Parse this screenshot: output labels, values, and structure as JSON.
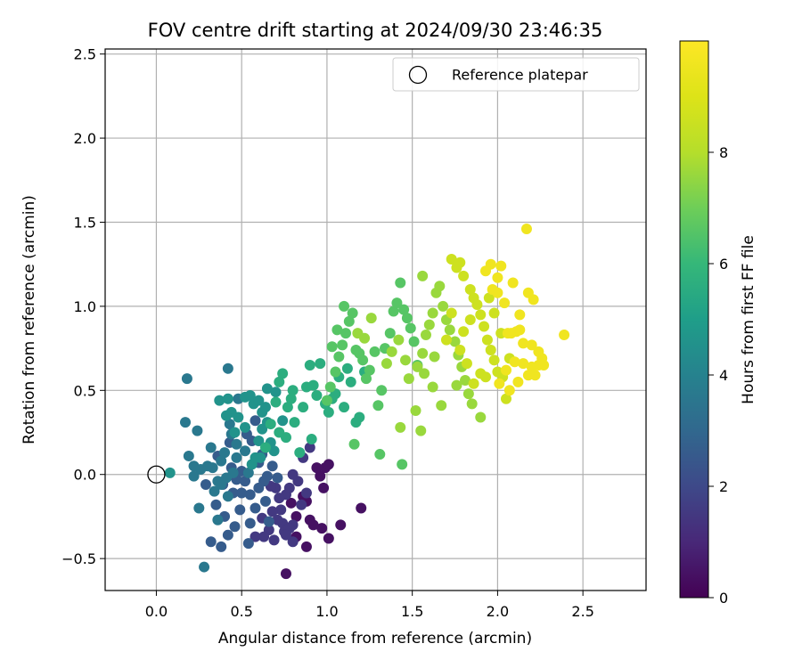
{
  "chart_data": {
    "type": "scatter",
    "title": "FOV centre drift starting at 2024/09/30 23:46:35",
    "xlabel": "Angular distance from reference (arcmin)",
    "ylabel": "Rotation from reference (arcmin)",
    "xlim": [
      -0.3,
      2.87
    ],
    "ylim": [
      -0.69,
      2.53
    ],
    "xticks": [
      0.0,
      0.5,
      1.0,
      1.5,
      2.0,
      2.5
    ],
    "xtick_labels": [
      "0.0",
      "0.5",
      "1.0",
      "1.5",
      "2.0",
      "2.5"
    ],
    "yticks": [
      -0.5,
      0.0,
      0.5,
      1.0,
      1.5,
      2.0,
      2.5
    ],
    "ytick_labels": [
      "−0.5",
      "0.0",
      "0.5",
      "1.0",
      "1.5",
      "2.0",
      "2.5"
    ],
    "grid": true,
    "legend": {
      "placement": "top-right",
      "label": "Reference platepar"
    },
    "reference_point": {
      "x": 0.0,
      "y": 0.0
    },
    "colorbar": {
      "label": "Hours from first FF file",
      "colormap": "viridis",
      "range": [
        0,
        10
      ],
      "ticks": [
        0,
        2,
        4,
        6,
        8
      ],
      "tick_labels": [
        "0",
        "2",
        "4",
        "6",
        "8"
      ]
    },
    "series": [
      {
        "points": [
          [
            0.99,
            0.04
          ],
          [
            0.96,
            -0.01
          ],
          [
            1.01,
            0.06
          ],
          [
            0.94,
            0.04
          ],
          [
            0.98,
            -0.08
          ],
          [
            1.08,
            -0.3
          ],
          [
            1.2,
            -0.2
          ],
          [
            0.76,
            -0.59
          ],
          [
            0.88,
            -0.43
          ],
          [
            0.97,
            -0.32
          ],
          [
            1.01,
            -0.38
          ],
          [
            0.92,
            -0.3
          ],
          [
            0.88,
            -0.16
          ],
          [
            0.82,
            -0.37
          ],
          [
            0.79,
            -0.17
          ],
          [
            0.82,
            -0.25
          ],
          [
            0.86,
            -0.13
          ],
          [
            0.9,
            -0.27
          ]
        ],
        "hour": 0.4
      },
      {
        "points": [
          [
            0.76,
            -0.12
          ],
          [
            0.7,
            -0.08
          ],
          [
            0.67,
            -0.07
          ],
          [
            0.72,
            -0.14
          ],
          [
            0.78,
            -0.08
          ],
          [
            0.88,
            -0.11
          ],
          [
            0.85,
            -0.18
          ],
          [
            0.83,
            -0.04
          ],
          [
            0.73,
            -0.21
          ],
          [
            0.68,
            -0.22
          ],
          [
            0.74,
            -0.29
          ],
          [
            0.8,
            -0.3
          ],
          [
            0.75,
            -0.34
          ],
          [
            0.69,
            -0.39
          ],
          [
            0.66,
            -0.33
          ],
          [
            0.62,
            -0.26
          ],
          [
            0.63,
            -0.37
          ],
          [
            0.78,
            -0.32
          ],
          [
            0.8,
            -0.4
          ],
          [
            0.71,
            -0.27
          ],
          [
            0.76,
            -0.36
          ],
          [
            0.58,
            -0.37
          ],
          [
            0.86,
            0.1
          ],
          [
            0.9,
            0.16
          ],
          [
            0.8,
            0.0
          ]
        ],
        "hour": 1.5
      },
      {
        "points": [
          [
            0.52,
            -0.04
          ],
          [
            0.55,
            -0.12
          ],
          [
            0.58,
            -0.2
          ],
          [
            0.6,
            -0.08
          ],
          [
            0.63,
            -0.04
          ],
          [
            0.65,
            -0.01
          ],
          [
            0.68,
            0.05
          ],
          [
            0.71,
            -0.02
          ],
          [
            0.62,
            0.12
          ],
          [
            0.56,
            0.2
          ],
          [
            0.53,
            0.24
          ],
          [
            0.58,
            0.32
          ],
          [
            0.6,
            0.07
          ],
          [
            0.64,
            -0.16
          ],
          [
            0.66,
            -0.28
          ],
          [
            0.55,
            -0.29
          ],
          [
            0.49,
            -0.21
          ],
          [
            0.45,
            -0.11
          ],
          [
            0.42,
            -0.36
          ],
          [
            0.46,
            -0.31
          ],
          [
            0.5,
            -0.11
          ],
          [
            0.54,
            -0.41
          ],
          [
            0.38,
            -0.43
          ],
          [
            0.32,
            -0.4
          ],
          [
            0.4,
            -0.25
          ],
          [
            0.35,
            -0.18
          ],
          [
            0.29,
            -0.06
          ],
          [
            0.44,
            0.04
          ],
          [
            0.36,
            0.11
          ],
          [
            0.43,
            0.19
          ],
          [
            0.47,
            -0.03
          ],
          [
            0.5,
            0.02
          ],
          [
            0.39,
            -0.06
          ]
        ],
        "hour": 2.6
      },
      {
        "points": [
          [
            0.28,
            -0.55
          ],
          [
            0.25,
            -0.2
          ],
          [
            0.34,
            -0.1
          ],
          [
            0.38,
            -0.06
          ],
          [
            0.3,
            0.05
          ],
          [
            0.32,
            0.16
          ],
          [
            0.4,
            0.13
          ],
          [
            0.45,
            0.01
          ],
          [
            0.47,
            0.1
          ],
          [
            0.52,
            0.14
          ],
          [
            0.54,
            0.01
          ],
          [
            0.42,
            -0.13
          ],
          [
            0.22,
            0.05
          ],
          [
            0.22,
            -0.01
          ],
          [
            0.19,
            0.11
          ],
          [
            0.24,
            0.26
          ],
          [
            0.17,
            0.31
          ],
          [
            0.18,
            0.57
          ],
          [
            0.42,
            0.63
          ],
          [
            0.43,
            0.3
          ],
          [
            0.44,
            0.24
          ],
          [
            0.47,
            0.18
          ],
          [
            0.38,
            0.08
          ],
          [
            0.33,
            0.04
          ],
          [
            0.36,
            -0.04
          ],
          [
            0.41,
            -0.02
          ],
          [
            0.26,
            0.03
          ],
          [
            0.36,
            -0.27
          ],
          [
            0.48,
            0.45
          ]
        ],
        "hour": 3.6
      },
      {
        "points": [
          [
            0.08,
            0.01
          ],
          [
            0.37,
            0.44
          ],
          [
            0.42,
            0.45
          ],
          [
            0.44,
            0.37
          ],
          [
            0.48,
            0.34
          ],
          [
            0.52,
            0.46
          ],
          [
            0.55,
            0.47
          ],
          [
            0.57,
            0.42
          ],
          [
            0.6,
            0.44
          ],
          [
            0.62,
            0.37
          ],
          [
            0.64,
            0.4
          ],
          [
            0.65,
            0.31
          ],
          [
            0.62,
            0.27
          ],
          [
            0.67,
            0.19
          ],
          [
            0.69,
            0.14
          ],
          [
            0.61,
            0.1
          ],
          [
            0.56,
            0.06
          ],
          [
            0.52,
            0.28
          ],
          [
            0.46,
            0.25
          ],
          [
            0.41,
            0.35
          ],
          [
            0.65,
            0.51
          ],
          [
            0.7,
            0.49
          ],
          [
            0.74,
            0.32
          ],
          [
            0.6,
            0.2
          ],
          [
            0.58,
            0.1
          ]
        ],
        "hour": 4.6
      },
      {
        "points": [
          [
            0.64,
            0.16
          ],
          [
            0.67,
            0.3
          ],
          [
            0.7,
            0.43
          ],
          [
            0.72,
            0.55
          ],
          [
            0.74,
            0.6
          ],
          [
            0.77,
            0.4
          ],
          [
            0.79,
            0.45
          ],
          [
            0.81,
            0.31
          ],
          [
            0.84,
            0.13
          ],
          [
            0.86,
            0.4
          ],
          [
            0.88,
            0.52
          ],
          [
            0.9,
            0.65
          ],
          [
            0.92,
            0.53
          ],
          [
            0.94,
            0.47
          ],
          [
            0.96,
            0.66
          ],
          [
            0.99,
            0.42
          ],
          [
            1.01,
            0.37
          ],
          [
            1.03,
            0.45
          ],
          [
            1.05,
            0.48
          ],
          [
            1.07,
            0.58
          ],
          [
            1.1,
            0.4
          ],
          [
            1.12,
            0.63
          ],
          [
            1.14,
            0.55
          ],
          [
            1.17,
            0.31
          ],
          [
            1.19,
            0.34
          ],
          [
            1.22,
            0.61
          ],
          [
            0.91,
            0.21
          ],
          [
            0.76,
            0.22
          ],
          [
            0.72,
            0.25
          ],
          [
            0.8,
            0.5
          ]
        ],
        "hour": 5.6
      },
      {
        "points": [
          [
            1.0,
            0.44
          ],
          [
            1.02,
            0.52
          ],
          [
            1.05,
            0.61
          ],
          [
            1.07,
            0.7
          ],
          [
            1.09,
            0.77
          ],
          [
            1.11,
            0.84
          ],
          [
            1.13,
            0.91
          ],
          [
            1.15,
            0.96
          ],
          [
            1.17,
            0.74
          ],
          [
            1.19,
            0.72
          ],
          [
            1.21,
            0.68
          ],
          [
            1.23,
            0.57
          ],
          [
            1.25,
            0.62
          ],
          [
            1.28,
            0.73
          ],
          [
            1.3,
            0.41
          ],
          [
            1.32,
            0.5
          ],
          [
            1.34,
            0.75
          ],
          [
            1.37,
            0.84
          ],
          [
            1.39,
            0.97
          ],
          [
            1.41,
            1.02
          ],
          [
            1.43,
            1.14
          ],
          [
            1.45,
            0.98
          ],
          [
            1.47,
            0.93
          ],
          [
            1.49,
            0.87
          ],
          [
            1.51,
            0.79
          ],
          [
            1.53,
            0.65
          ],
          [
            1.31,
            0.12
          ],
          [
            1.44,
            0.06
          ],
          [
            1.16,
            0.18
          ],
          [
            1.03,
            0.76
          ],
          [
            1.06,
            0.86
          ],
          [
            1.1,
            1.0
          ]
        ],
        "hour": 6.6
      },
      {
        "points": [
          [
            1.55,
            0.26
          ],
          [
            1.43,
            0.28
          ],
          [
            1.52,
            0.38
          ],
          [
            1.48,
            0.57
          ],
          [
            1.56,
            0.72
          ],
          [
            1.58,
            0.83
          ],
          [
            1.6,
            0.89
          ],
          [
            1.62,
            0.96
          ],
          [
            1.64,
            1.08
          ],
          [
            1.66,
            1.12
          ],
          [
            1.68,
            1.0
          ],
          [
            1.7,
            0.92
          ],
          [
            1.72,
            0.86
          ],
          [
            1.75,
            0.79
          ],
          [
            1.77,
            0.71
          ],
          [
            1.79,
            0.64
          ],
          [
            1.81,
            0.56
          ],
          [
            1.83,
            0.48
          ],
          [
            1.85,
            0.42
          ],
          [
            1.67,
            0.41
          ],
          [
            1.62,
            0.52
          ],
          [
            1.57,
            0.6
          ],
          [
            1.53,
            0.64
          ],
          [
            1.46,
            0.68
          ],
          [
            1.38,
            0.73
          ],
          [
            1.35,
            0.66
          ],
          [
            1.42,
            0.8
          ],
          [
            1.63,
            0.7
          ],
          [
            1.76,
            0.53
          ],
          [
            1.9,
            0.34
          ],
          [
            1.22,
            0.81
          ],
          [
            1.18,
            0.84
          ],
          [
            1.26,
            0.93
          ],
          [
            1.56,
            1.18
          ]
        ],
        "hour": 7.6
      },
      {
        "points": [
          [
            1.73,
            1.28
          ],
          [
            1.76,
            1.23
          ],
          [
            1.78,
            1.26
          ],
          [
            1.8,
            1.18
          ],
          [
            1.84,
            1.1
          ],
          [
            1.86,
            1.05
          ],
          [
            1.88,
            1.01
          ],
          [
            1.9,
            0.95
          ],
          [
            1.92,
            0.88
          ],
          [
            1.94,
            0.8
          ],
          [
            1.96,
            0.74
          ],
          [
            1.98,
            0.68
          ],
          [
            2.0,
            0.61
          ],
          [
            2.03,
            0.58
          ],
          [
            2.05,
            0.45
          ],
          [
            1.9,
            0.6
          ],
          [
            1.86,
            0.54
          ],
          [
            1.82,
            0.66
          ],
          [
            1.78,
            0.74
          ],
          [
            1.8,
            0.85
          ],
          [
            1.84,
            0.92
          ],
          [
            1.73,
            0.96
          ],
          [
            1.7,
            0.8
          ],
          [
            1.93,
            0.58
          ],
          [
            1.95,
            1.05
          ],
          [
            1.98,
            0.96
          ],
          [
            2.02,
            0.84
          ],
          [
            2.07,
            0.69
          ]
        ],
        "hour": 8.6
      },
      {
        "points": [
          [
            2.17,
            1.46
          ],
          [
            2.02,
            1.24
          ],
          [
            1.93,
            1.21
          ],
          [
            1.96,
            1.25
          ],
          [
            2.0,
            1.08
          ],
          [
            2.04,
            1.02
          ],
          [
            2.09,
            1.14
          ],
          [
            2.13,
            0.95
          ],
          [
            2.18,
            1.08
          ],
          [
            2.21,
            1.04
          ],
          [
            2.08,
            0.84
          ],
          [
            2.11,
            0.85
          ],
          [
            2.15,
            0.78
          ],
          [
            2.2,
            0.77
          ],
          [
            2.24,
            0.73
          ],
          [
            2.26,
            0.69
          ],
          [
            2.24,
            0.65
          ],
          [
            2.2,
            0.64
          ],
          [
            2.15,
            0.66
          ],
          [
            2.1,
            0.67
          ],
          [
            2.05,
            0.62
          ],
          [
            2.01,
            0.54
          ],
          [
            2.07,
            0.5
          ],
          [
            2.12,
            0.55
          ],
          [
            2.18,
            0.59
          ],
          [
            2.22,
            0.59
          ],
          [
            2.39,
            0.83
          ],
          [
            2.27,
            0.65
          ],
          [
            2.06,
            0.84
          ],
          [
            2.13,
            0.86
          ],
          [
            1.97,
            1.1
          ],
          [
            2.0,
            1.17
          ]
        ],
        "hour": 9.6
      }
    ]
  }
}
